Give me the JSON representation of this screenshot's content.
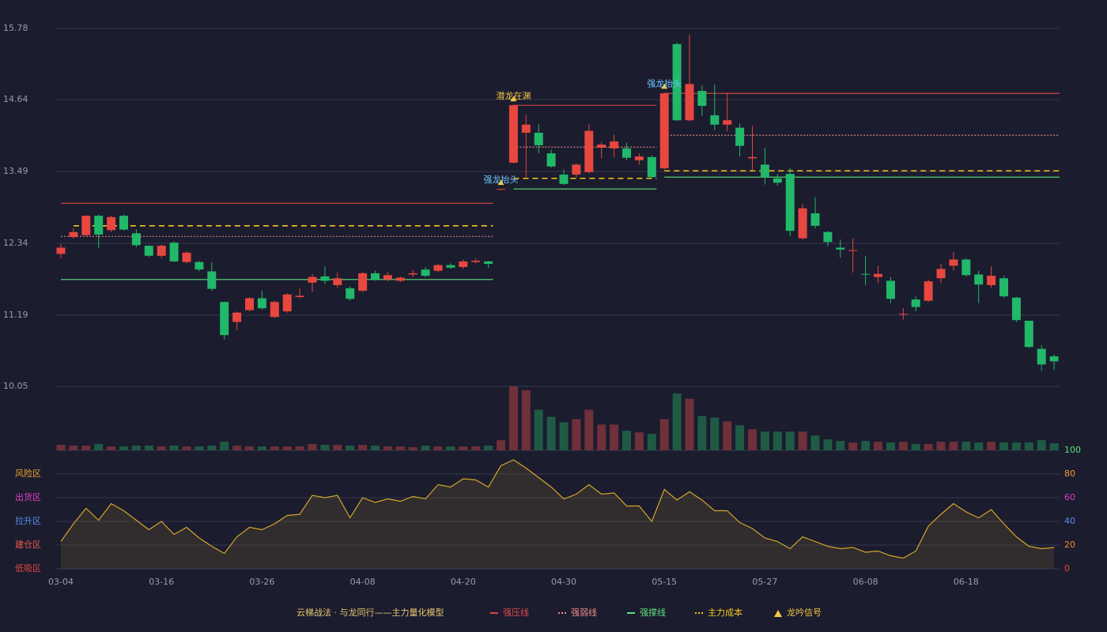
{
  "chart_data": {
    "type": "candlestick",
    "categories": [
      "03-04",
      null,
      null,
      null,
      null,
      null,
      null,
      null,
      "03-16",
      null,
      null,
      null,
      null,
      null,
      null,
      null,
      "03-26",
      null,
      null,
      null,
      null,
      null,
      null,
      null,
      "04-08",
      null,
      null,
      null,
      null,
      null,
      null,
      null,
      "04-20",
      null,
      null,
      null,
      null,
      null,
      null,
      null,
      "04-30",
      null,
      null,
      null,
      null,
      null,
      null,
      null,
      "05-15",
      null,
      null,
      null,
      null,
      null,
      null,
      null,
      "05-27",
      null,
      null,
      null,
      null,
      null,
      null,
      null,
      "06-08",
      null,
      null,
      null,
      null,
      null,
      null,
      null,
      "06-18",
      null,
      null,
      null,
      null,
      null,
      null,
      null
    ],
    "open": [
      12.17,
      12.44,
      12.47,
      12.78,
      12.55,
      12.78,
      12.5,
      12.3,
      12.14,
      12.35,
      12.04,
      12.04,
      11.89,
      11.4,
      11.08,
      11.27,
      11.46,
      11.16,
      11.25,
      11.48,
      11.71,
      11.81,
      11.67,
      11.62,
      11.58,
      11.86,
      11.76,
      11.74,
      11.84,
      11.92,
      11.9,
      11.99,
      11.96,
      12.04,
      12.05,
      13.2,
      13.63,
      14.11,
      14.11,
      13.78,
      13.44,
      13.44,
      13.48,
      13.87,
      13.86,
      13.86,
      13.67,
      13.72,
      13.54,
      15.53,
      14.31,
      14.78,
      14.39,
      14.24,
      14.19,
      13.7,
      13.6,
      13.38,
      13.45,
      12.42,
      12.82,
      12.52,
      12.27,
      12.22,
      11.85,
      11.8,
      11.74,
      11.2,
      11.44,
      11.42,
      11.78,
      11.98,
      12.08,
      11.84,
      11.67,
      11.78,
      11.47,
      11.1,
      10.65,
      10.53
    ],
    "close": [
      12.27,
      12.52,
      12.78,
      12.48,
      12.76,
      12.56,
      12.31,
      12.14,
      12.3,
      12.05,
      12.19,
      11.92,
      11.61,
      10.87,
      11.23,
      11.46,
      11.3,
      11.4,
      11.52,
      11.5,
      11.8,
      11.74,
      11.78,
      11.45,
      11.86,
      11.76,
      11.83,
      11.79,
      11.86,
      11.82,
      11.99,
      11.95,
      12.05,
      12.06,
      12.01,
      13.21,
      14.55,
      14.24,
      13.91,
      13.57,
      13.29,
      13.6,
      14.14,
      13.92,
      13.97,
      13.71,
      13.73,
      13.4,
      14.74,
      14.31,
      14.89,
      14.54,
      14.24,
      14.31,
      13.9,
      13.72,
      13.4,
      13.31,
      12.54,
      12.9,
      12.62,
      12.36,
      12.24,
      12.23,
      11.84,
      11.85,
      11.45,
      11.21,
      11.32,
      11.73,
      11.93,
      12.08,
      11.83,
      11.68,
      11.82,
      11.49,
      11.11,
      10.68,
      10.4,
      10.45
    ],
    "high": [
      12.33,
      12.58,
      12.79,
      12.8,
      12.78,
      12.8,
      12.56,
      12.31,
      12.32,
      12.37,
      12.21,
      12.06,
      12.04,
      11.41,
      11.25,
      11.48,
      11.58,
      11.42,
      11.54,
      11.62,
      11.85,
      11.97,
      11.87,
      11.65,
      11.88,
      11.9,
      11.88,
      11.81,
      11.91,
      11.96,
      12.01,
      12.02,
      12.08,
      12.1,
      12.06,
      13.21,
      14.56,
      14.4,
      14.25,
      13.84,
      13.52,
      13.62,
      14.25,
      13.96,
      14.08,
      13.95,
      13.78,
      13.75,
      14.75,
      15.55,
      15.68,
      14.87,
      14.88,
      14.75,
      14.26,
      14.22,
      13.87,
      13.45,
      13.55,
      12.97,
      13.08,
      12.54,
      12.4,
      12.42,
      12.14,
      11.98,
      11.8,
      11.3,
      11.49,
      11.76,
      12.01,
      12.2,
      12.1,
      11.9,
      11.97,
      11.82,
      11.48,
      11.1,
      10.71,
      10.56
    ],
    "low": [
      12.1,
      12.42,
      12.46,
      12.26,
      12.52,
      12.54,
      12.28,
      12.12,
      12.1,
      12.04,
      12.02,
      11.89,
      11.58,
      10.8,
      10.95,
      11.25,
      11.28,
      11.14,
      11.23,
      11.46,
      11.56,
      11.69,
      11.62,
      11.42,
      11.56,
      11.74,
      11.73,
      11.72,
      11.8,
      11.8,
      11.88,
      11.93,
      11.93,
      12.02,
      11.95,
      13.19,
      13.62,
      13.4,
      13.78,
      13.55,
      13.27,
      13.4,
      13.46,
      13.7,
      13.72,
      13.67,
      13.6,
      13.38,
      13.52,
      14.3,
      14.29,
      14.38,
      14.15,
      14.13,
      13.73,
      13.52,
      13.28,
      13.26,
      12.45,
      12.4,
      12.58,
      12.29,
      12.11,
      11.87,
      11.67,
      11.7,
      11.38,
      11.12,
      11.25,
      11.4,
      11.7,
      11.9,
      11.8,
      11.38,
      11.63,
      11.47,
      11.08,
      10.66,
      10.3,
      10.31
    ],
    "volume": [
      7,
      6,
      6,
      8,
      5,
      5,
      6,
      6,
      5,
      6,
      5,
      5,
      6,
      11,
      6,
      5,
      5,
      5,
      5,
      5,
      8,
      7,
      7,
      6,
      7,
      6,
      5,
      5,
      4,
      6,
      5,
      5,
      5,
      5,
      6,
      13,
      82,
      77,
      52,
      43,
      36,
      40,
      52,
      33,
      33,
      25,
      23,
      21,
      40,
      73,
      66,
      44,
      42,
      37,
      32,
      27,
      24,
      24,
      24,
      24,
      19,
      14,
      12,
      10,
      12,
      11,
      10,
      11,
      8,
      8,
      11,
      11,
      11,
      10,
      11,
      10,
      10,
      10,
      13,
      9
    ],
    "ylim": [
      10.05,
      15.78
    ],
    "yticks": [
      10.05,
      11.19,
      12.34,
      13.49,
      14.64,
      15.78
    ],
    "up_color": "#e8473f",
    "down_color": "#21b86a",
    "levels": [
      {
        "name": "强压线",
        "color": "#e04848",
        "style": "solid",
        "segments": [
          {
            "start": 0,
            "end": 34,
            "value": 12.98
          },
          {
            "start": 36,
            "end": 47,
            "value": 14.55
          },
          {
            "start": 48,
            "end": 79,
            "value": 14.74
          }
        ]
      },
      {
        "name": "强弱线",
        "color": "#f08a8a",
        "style": "dotted",
        "segments": [
          {
            "start": 0,
            "end": 34,
            "value": 12.45
          },
          {
            "start": 36,
            "end": 47,
            "value": 13.88
          },
          {
            "start": 48,
            "end": 79,
            "value": 14.07
          }
        ]
      },
      {
        "name": "强撑线",
        "color": "#5de07a",
        "style": "solid",
        "segments": [
          {
            "start": 0,
            "end": 34,
            "value": 11.76
          },
          {
            "start": 36,
            "end": 47,
            "value": 13.21
          },
          {
            "start": 48,
            "end": 79,
            "value": 13.4
          }
        ]
      },
      {
        "name": "主力成本",
        "color": "#f5c518",
        "style": "dashed",
        "segments": [
          {
            "start": 1,
            "end": 34,
            "value": 12.62
          },
          {
            "start": 36,
            "end": 47,
            "value": 13.38
          },
          {
            "start": 48,
            "end": 79,
            "value": 13.5
          }
        ]
      }
    ],
    "signals": [
      {
        "label": "潜龙在渊",
        "index": 36,
        "price": 14.55,
        "color": "#f5c842"
      },
      {
        "label": "强龙抬头",
        "index": 35,
        "price": 13.21,
        "color": "#6ec6ff"
      },
      {
        "label": "强龙抬头",
        "index": 48,
        "price": 14.75,
        "color": "#6ec6ff"
      }
    ],
    "signal_name": "龙吟信号",
    "signal_color": "#f5c842",
    "indicator": {
      "values": [
        23,
        38,
        51,
        41,
        55,
        49,
        41,
        33,
        40,
        29,
        35,
        26,
        19,
        13,
        27,
        35,
        33,
        38,
        45,
        46,
        62,
        60,
        62,
        43,
        60,
        56,
        59,
        57,
        61,
        59,
        71,
        69,
        76,
        75,
        69,
        87,
        92,
        85,
        77,
        69,
        59,
        63,
        71,
        63,
        64,
        53,
        53,
        40,
        67,
        58,
        65,
        58,
        49,
        49,
        39,
        34,
        26,
        23,
        17,
        27,
        23,
        19,
        17,
        18,
        14,
        15,
        11,
        9,
        15,
        36,
        46,
        55,
        48,
        43,
        50,
        38,
        27,
        19,
        17,
        18
      ],
      "color": "#d4a62a",
      "ylim": [
        0,
        100
      ],
      "yticks": [
        0,
        20,
        40,
        60,
        80,
        100
      ],
      "ytick_colors": [
        "#e8473f",
        "#f08a3a",
        "#5b8ff0",
        "#e040c0",
        "#f0a030",
        "#5de07a"
      ],
      "zones": [
        {
          "label": "风险区",
          "value": 80,
          "color": "#f0a030"
        },
        {
          "label": "出货区",
          "value": 60,
          "color": "#e040c0"
        },
        {
          "label": "拉升区",
          "value": 40,
          "color": "#5b8ff0"
        },
        {
          "label": "建仓区",
          "value": 20,
          "color": "#f05a4a"
        },
        {
          "label": "低吸区",
          "value": 0,
          "color": "#e8473f"
        }
      ]
    },
    "legend_title": "云梯战法 · 与龙同行——主力量化模型"
  }
}
